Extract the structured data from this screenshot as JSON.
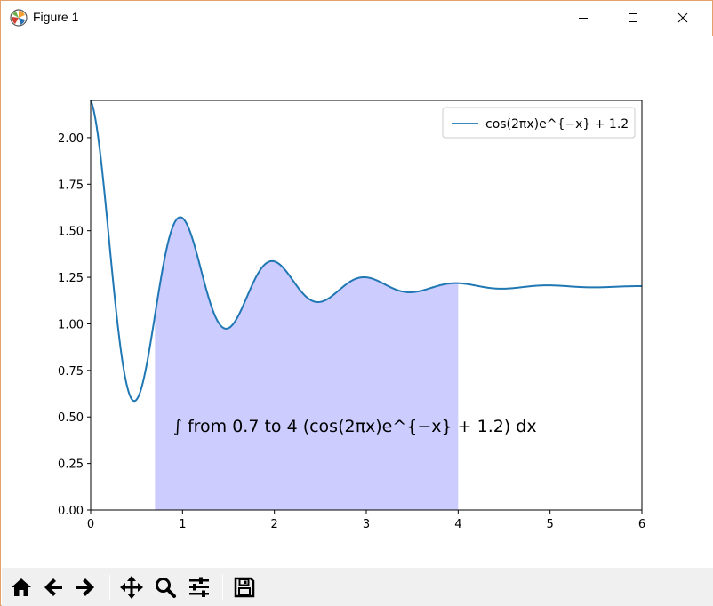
{
  "window": {
    "title": "Figure 1",
    "controls": [
      "minimize",
      "maximize",
      "close"
    ]
  },
  "toolbar": {
    "buttons": [
      {
        "name": "home",
        "icon": "home-icon"
      },
      {
        "name": "back",
        "icon": "arrow-left-icon"
      },
      {
        "name": "forward",
        "icon": "arrow-right-icon"
      },
      {
        "name": "pan",
        "icon": "move-icon"
      },
      {
        "name": "zoom",
        "icon": "magnifier-icon"
      },
      {
        "name": "subplots",
        "icon": "sliders-icon"
      },
      {
        "name": "save",
        "icon": "floppy-disk-icon"
      }
    ]
  },
  "chart_data": {
    "type": "line",
    "title": "",
    "xlabel": "",
    "ylabel": "",
    "function": "cos(2*pi*x)*exp(-x)+1.2",
    "x_range": [
      0,
      6
    ],
    "xlim": [
      0,
      6
    ],
    "ylim": [
      0,
      2.2
    ],
    "xticks": [
      "0",
      "1",
      "2",
      "3",
      "4",
      "5",
      "6"
    ],
    "yticks": [
      "0.00",
      "0.25",
      "0.50",
      "0.75",
      "1.00",
      "1.25",
      "1.50",
      "1.75",
      "2.00"
    ],
    "line_color": "#1f77b4",
    "fill": {
      "x_from": 0.7,
      "x_to": 4,
      "color": "#ccccff"
    },
    "legend": {
      "location": "upper right",
      "entries": [
        {
          "label": "cos(2πx)e^{−x} + 1.2"
        }
      ]
    },
    "annotation": {
      "text": "∫ from 0.7 to 4 (cos(2πx)e^{−x} + 1.2) dx"
    },
    "grid": false
  }
}
